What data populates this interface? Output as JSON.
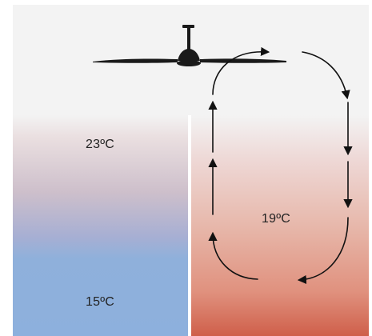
{
  "labels": {
    "warm_air_top": "23ºC",
    "circulating_air": "19ºC",
    "cool_air_bottom": "15ºC"
  },
  "colors": {
    "background_top": "#f3f3f3",
    "cool_zone": "#8db0dd",
    "warm_zone": "#cf5f4a",
    "fan": "#1a1a1a",
    "arrows": "#111111"
  },
  "icons": {
    "fan": "ceiling-fan-icon",
    "flow": "airflow-arrow-icon"
  }
}
